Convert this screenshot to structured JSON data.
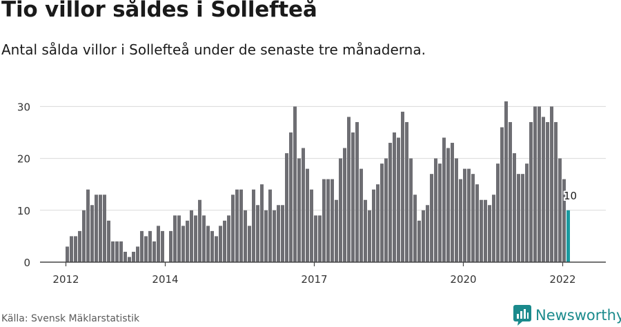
{
  "header": {
    "title": "Tio villor såldes i Sollefteå",
    "subtitle": "Antal sålda villor i Sollefteå under de senaste tre månaderna."
  },
  "footer": {
    "source": "Källa: Svensk Mäklarstatistik",
    "brand": "Newsworthy"
  },
  "colors": {
    "bar": "#6e6e73",
    "highlight": "#1a9aa0",
    "grid": "#d9d9d9",
    "axis": "#444444",
    "brand": "#1a8a8c"
  },
  "chart_data": {
    "type": "bar",
    "x_start": "2012-01",
    "frequency": "monthly",
    "values": [
      3,
      5,
      5,
      6,
      10,
      14,
      11,
      13,
      13,
      13,
      8,
      4,
      4,
      4,
      2,
      1,
      2,
      3,
      6,
      5,
      6,
      4,
      7,
      6,
      0,
      6,
      9,
      9,
      7,
      8,
      10,
      9,
      12,
      9,
      7,
      6,
      5,
      7,
      8,
      9,
      13,
      14,
      14,
      10,
      7,
      14,
      11,
      15,
      10,
      14,
      10,
      11,
      11,
      21,
      25,
      30,
      20,
      22,
      18,
      14,
      9,
      9,
      16,
      16,
      16,
      12,
      20,
      22,
      28,
      25,
      27,
      18,
      12,
      10,
      14,
      15,
      19,
      20,
      23,
      25,
      24,
      29,
      27,
      20,
      13,
      8,
      10,
      11,
      17,
      20,
      19,
      24,
      22,
      23,
      20,
      16,
      18,
      18,
      17,
      15,
      12,
      12,
      11,
      13,
      19,
      26,
      31,
      27,
      21,
      17,
      17,
      19,
      27,
      30,
      30,
      28,
      27,
      30,
      27,
      20,
      16,
      10
    ],
    "highlight_last": true,
    "annotation": {
      "text": "10"
    },
    "y_ticks": [
      0,
      10,
      20,
      30
    ],
    "y_tick_labels": [
      "0",
      "10",
      "20",
      "30"
    ],
    "x_tick_labels": [
      "2012",
      "2014",
      "2017",
      "2020",
      "2022"
    ],
    "x_tick_dates": [
      "2012-01",
      "2014-01",
      "2017-01",
      "2020-01",
      "2022-01"
    ],
    "ylim": [
      0,
      32
    ],
    "grid": true,
    "title": "",
    "xlabel": "",
    "ylabel": ""
  }
}
